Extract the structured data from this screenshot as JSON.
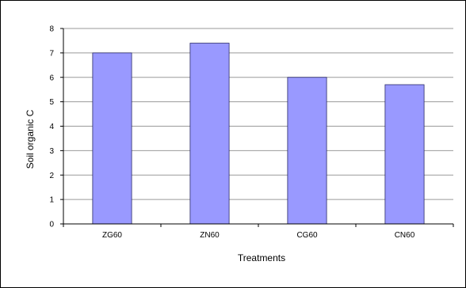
{
  "chart_data": {
    "type": "bar",
    "categories": [
      "ZG60",
      "ZN60",
      "CG60",
      "CN60"
    ],
    "values": [
      7.0,
      7.4,
      6.0,
      5.7
    ],
    "xlabel": "Treatments",
    "ylabel": "Soil organic C",
    "ylim": [
      0,
      8
    ],
    "yticks": [
      0,
      1,
      2,
      3,
      4,
      5,
      6,
      7,
      8
    ],
    "grid": true,
    "legend": "none",
    "colors": {
      "bar": "#9999ff",
      "bar_stroke": "#2a2a6a",
      "grid": "#9a9a9a",
      "axis": "#000000"
    }
  }
}
